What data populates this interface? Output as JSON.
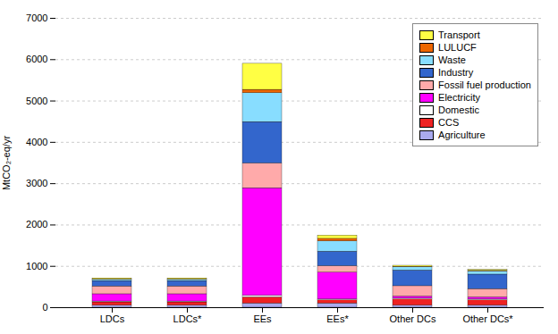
{
  "chart_data": {
    "type": "bar",
    "stacked": true,
    "categories": [
      "LDCs",
      "LDCs*",
      "EEs",
      "EEs*",
      "Other DCs",
      "Other DCs*"
    ],
    "ylabel": "MtCO₂-eq/yr",
    "ylim": [
      0,
      7000
    ],
    "yticks": [
      0,
      1000,
      2000,
      3000,
      4000,
      5000,
      6000,
      7000
    ],
    "grid": true,
    "legend": "upper right",
    "series": [
      {
        "name": "Agriculture",
        "color": "#aaaaee",
        "values": [
          50,
          50,
          100,
          100,
          50,
          50
        ]
      },
      {
        "name": "CCS",
        "color": "#ee2222",
        "values": [
          80,
          80,
          150,
          80,
          150,
          130
        ]
      },
      {
        "name": "Domestic",
        "color": "#ffffff",
        "values": [
          20,
          20,
          40,
          20,
          20,
          20
        ]
      },
      {
        "name": "Electricity",
        "color": "#ff00ff",
        "values": [
          175,
          175,
          2600,
          650,
          50,
          50
        ]
      },
      {
        "name": "Fossil fuel production",
        "color": "#ffaaaa",
        "values": [
          190,
          190,
          600,
          155,
          250,
          200
        ]
      },
      {
        "name": "Industry",
        "color": "#3366cc",
        "values": [
          130,
          130,
          1000,
          350,
          380,
          350
        ]
      },
      {
        "name": "Waste",
        "color": "#88ddff",
        "values": [
          30,
          30,
          700,
          250,
          80,
          80
        ]
      },
      {
        "name": "LULUCF",
        "color": "#ee6600",
        "values": [
          10,
          10,
          80,
          60,
          10,
          10
        ]
      },
      {
        "name": "Transport",
        "color": "#ffff44",
        "values": [
          25,
          25,
          630,
          80,
          25,
          25
        ]
      }
    ]
  }
}
